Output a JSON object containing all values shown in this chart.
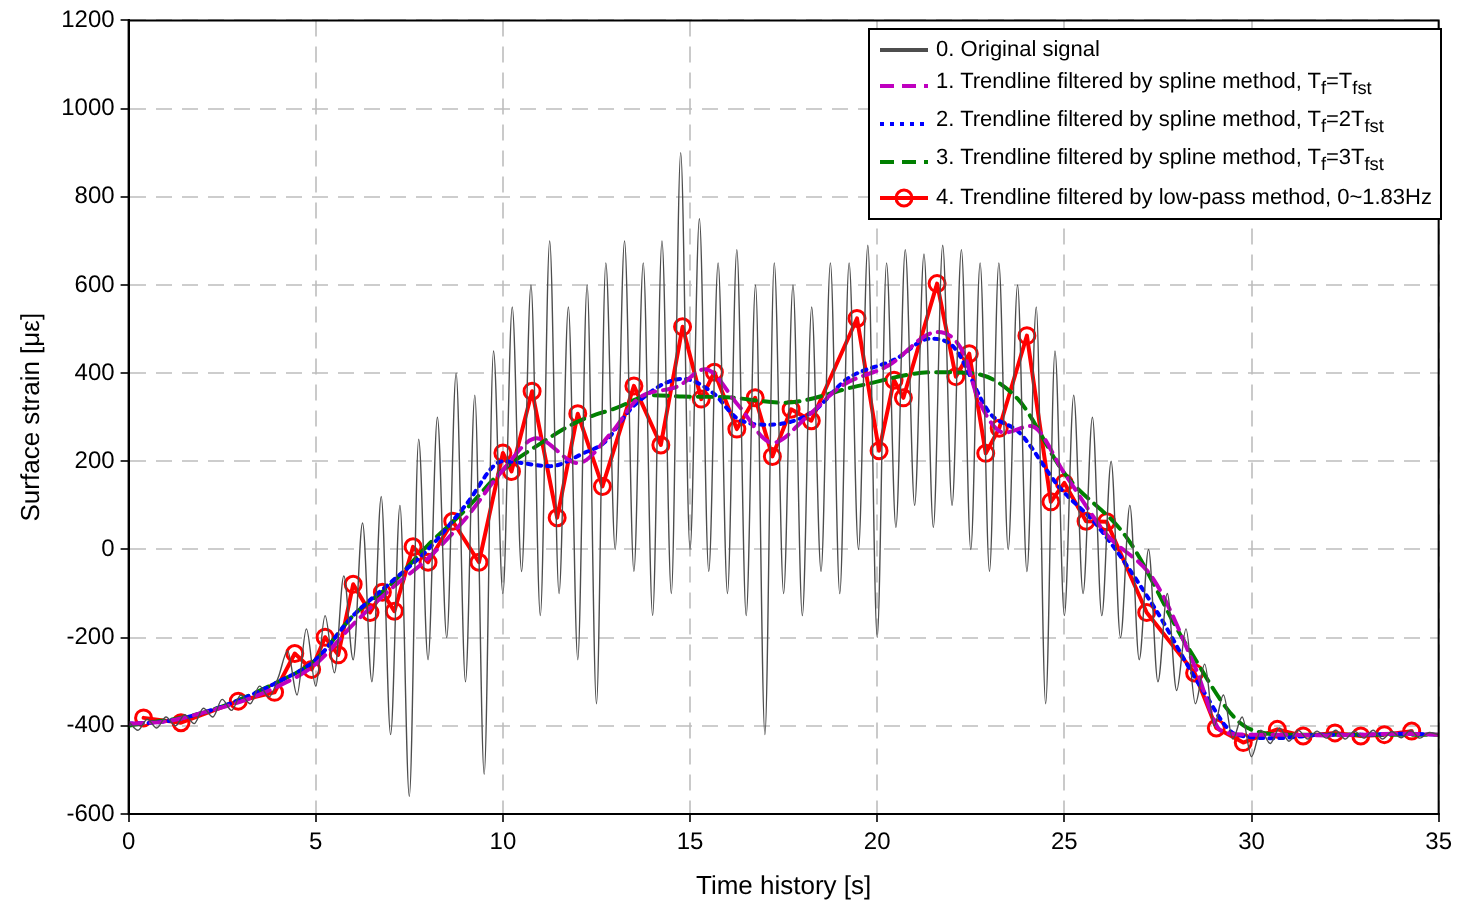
{
  "chart_data": {
    "type": "line",
    "xlabel": "Time history [s]",
    "ylabel": "Surface strain [με]",
    "xlim": [
      0,
      35
    ],
    "xticks": [
      0,
      5,
      10,
      15,
      20,
      25,
      30,
      35
    ],
    "ylim": [
      -600,
      1200
    ],
    "yticks": [
      -600,
      -400,
      -200,
      0,
      200,
      400,
      600,
      800,
      1000,
      1200
    ],
    "grid": true,
    "legend": "top right",
    "series": [
      {
        "name": "0. Original signal",
        "color": "#4d4d4d",
        "line_style": "solid",
        "marker": "none",
        "x": [
          0,
          0.25,
          0.5,
          0.75,
          1,
          1.25,
          1.5,
          1.75,
          2,
          2.25,
          2.5,
          2.75,
          3,
          3.25,
          3.5,
          3.75,
          4,
          4.25,
          4.5,
          4.75,
          5,
          5.25,
          5.5,
          5.75,
          6,
          6.25,
          6.5,
          6.75,
          7,
          7.25,
          7.5,
          7.75,
          8,
          8.25,
          8.5,
          8.75,
          9,
          9.25,
          9.5,
          9.75,
          10,
          10.25,
          10.5,
          10.75,
          11,
          11.25,
          11.5,
          11.75,
          12,
          12.25,
          12.5,
          12.75,
          13,
          13.25,
          13.5,
          13.75,
          14,
          14.25,
          14.5,
          14.75,
          15,
          15.25,
          15.5,
          15.75,
          16,
          16.25,
          16.5,
          16.75,
          17,
          17.25,
          17.5,
          17.75,
          18,
          18.25,
          18.5,
          18.75,
          19,
          19.25,
          19.5,
          19.75,
          20,
          20.25,
          20.5,
          20.75,
          21,
          21.25,
          21.5,
          21.75,
          22,
          22.25,
          22.5,
          22.75,
          23,
          23.25,
          23.5,
          23.75,
          24,
          24.25,
          24.5,
          24.75,
          25,
          25.25,
          25.5,
          25.75,
          26,
          26.25,
          26.5,
          26.75,
          27,
          27.25,
          27.5,
          27.75,
          28,
          28.25,
          28.5,
          28.75,
          29,
          29.25,
          29.5,
          29.75,
          30,
          30.25,
          30.5,
          30.75,
          31,
          31.25,
          31.5,
          31.75,
          32,
          32.25,
          32.5,
          32.75,
          33,
          33.25,
          33.5,
          33.75,
          34,
          34.25,
          34.5,
          34.75,
          35
        ],
        "values": [
          -390,
          -410,
          -385,
          -405,
          -380,
          -400,
          -375,
          -395,
          -360,
          -380,
          -340,
          -365,
          -330,
          -350,
          -310,
          -335,
          -290,
          -230,
          -330,
          -180,
          -310,
          -150,
          -280,
          -60,
          -250,
          60,
          -300,
          120,
          -420,
          100,
          -560,
          250,
          -250,
          300,
          -200,
          400,
          -300,
          350,
          -510,
          450,
          -100,
          550,
          -50,
          600,
          -150,
          700,
          -100,
          550,
          -250,
          600,
          -350,
          650,
          0,
          700,
          -50,
          650,
          -150,
          700,
          -100,
          900,
          0,
          750,
          -50,
          650,
          -100,
          680,
          -150,
          600,
          -420,
          650,
          -100,
          600,
          -150,
          550,
          -50,
          650,
          -100,
          650,
          0,
          690,
          -200,
          650,
          50,
          680,
          100,
          670,
          50,
          690,
          100,
          680,
          0,
          650,
          -50,
          650,
          0,
          600,
          -50,
          550,
          -350,
          450,
          -150,
          350,
          -100,
          300,
          -150,
          200,
          -200,
          100,
          -250,
          0,
          -300,
          -100,
          -320,
          -180,
          -350,
          -260,
          -400,
          -330,
          -430,
          -380,
          -470,
          -410,
          -440,
          -405,
          -435,
          -410,
          -430,
          -412,
          -428,
          -410,
          -430,
          -412,
          -428,
          -410,
          -430,
          -413,
          -427,
          -410,
          -428,
          -415,
          -420
        ]
      },
      {
        "name": "1. Trendline filtered by spline method, T$_{f}$=T$_{fst}$",
        "color": "#bf00bf",
        "line_style": "dashed",
        "marker": "none",
        "x": [
          0,
          1,
          2,
          3,
          4,
          5,
          6,
          7,
          8,
          9,
          10,
          10.9,
          12,
          12.9,
          13.6,
          14.7,
          15.4,
          16.3,
          17.2,
          18.15,
          19.05,
          20.3,
          21.6,
          22.3,
          22.7,
          23.4,
          24.1,
          25,
          26.1,
          27.4,
          28.5,
          29.2,
          29.9,
          31,
          32,
          33,
          34,
          35
        ],
        "values": [
          -395,
          -390,
          -370,
          -345,
          -310,
          -260,
          -170,
          -90,
          -20,
          70,
          180,
          252,
          196,
          265,
          341,
          371,
          409,
          326,
          242,
          303,
          371,
          417,
          493,
          447,
          341,
          265,
          280,
          173,
          37,
          -70,
          -268,
          -412,
          -420,
          -420,
          -422,
          -420,
          -418,
          -420
        ]
      },
      {
        "name": "2. Trendline filtered by spline method, T$_{f}$=2T$_{fst}$",
        "color": "#0000ff",
        "line_style": "dotted",
        "marker": "none",
        "x": [
          0,
          1,
          2,
          3,
          4,
          5,
          6,
          7,
          8,
          9,
          10,
          11.27,
          12.17,
          12.7,
          13.5,
          14.8,
          15.6,
          16.3,
          17.1,
          18.24,
          19.2,
          20.5,
          21.4,
          22,
          23,
          23.8,
          24.85,
          25.9,
          27.4,
          28.66,
          29.6,
          30.65,
          32,
          33,
          34,
          35
        ],
        "values": [
          -395,
          -390,
          -370,
          -340,
          -300,
          -250,
          -150,
          -75,
          0,
          100,
          200,
          189,
          219,
          242,
          326,
          387,
          356,
          295,
          283,
          310,
          387,
          432,
          478,
          463,
          310,
          265,
          143,
          52,
          -131,
          -314,
          -420,
          -428,
          -420,
          -420,
          -418,
          -420
        ]
      },
      {
        "name": "3. Trendline filtered by spline method, T$_{f}$=3T$_{fst}$",
        "color": "#008000",
        "line_style": "dashed",
        "marker": "none",
        "x": [
          0,
          2,
          4,
          5,
          6,
          7,
          8,
          9,
          10,
          11,
          12,
          13,
          14,
          14.8,
          16,
          17.5,
          19.5,
          21.5,
          22.5,
          23.75,
          25,
          26.7,
          28.3,
          29.9,
          31,
          33,
          35
        ],
        "values": [
          -400,
          -370,
          -300,
          -250,
          -150,
          -80,
          10,
          90,
          180,
          240,
          290,
          320,
          350,
          347,
          345,
          333,
          371,
          402,
          400,
          342,
          173,
          23,
          -222,
          -405,
          -420,
          -420,
          -420
        ]
      },
      {
        "name": "4. Trendline filtered by low-pass method, 0~1.83Hz",
        "color": "#ff0000",
        "line_style": "solid",
        "marker": "circle",
        "x": [
          0.4,
          1.4,
          2.93,
          3.9,
          4.44,
          4.89,
          5.25,
          5.6,
          6.0,
          6.45,
          6.78,
          7.1,
          7.6,
          8.0,
          8.66,
          9.36,
          10.0,
          10.23,
          10.78,
          11.45,
          12.0,
          12.66,
          13.5,
          14.22,
          14.8,
          15.3,
          15.65,
          16.25,
          16.74,
          17.2,
          17.7,
          18.24,
          19.46,
          20.05,
          20.45,
          20.7,
          21.6,
          22.1,
          22.46,
          22.9,
          23.26,
          24.0,
          24.64,
          25.0,
          25.58,
          26.13,
          27.2,
          28.48,
          29.06,
          29.78,
          30.69,
          31.38,
          32.23,
          32.92,
          33.55,
          34.28
        ],
        "values": [
          -382,
          -393,
          -344,
          -324,
          -236,
          -272,
          -199,
          -239,
          -79,
          -143,
          -97,
          -140,
          6,
          -29,
          64,
          -29,
          219,
          177,
          359,
          72,
          308,
          143,
          371,
          237,
          505,
          341,
          402,
          273,
          344,
          211,
          318,
          292,
          524,
          224,
          384,
          344,
          603,
          392,
          444,
          218,
          275,
          485,
          108,
          151,
          64,
          63,
          -143,
          -280,
          -405,
          -438,
          -408,
          -423,
          -416,
          -423,
          -420,
          -412
        ]
      }
    ]
  }
}
